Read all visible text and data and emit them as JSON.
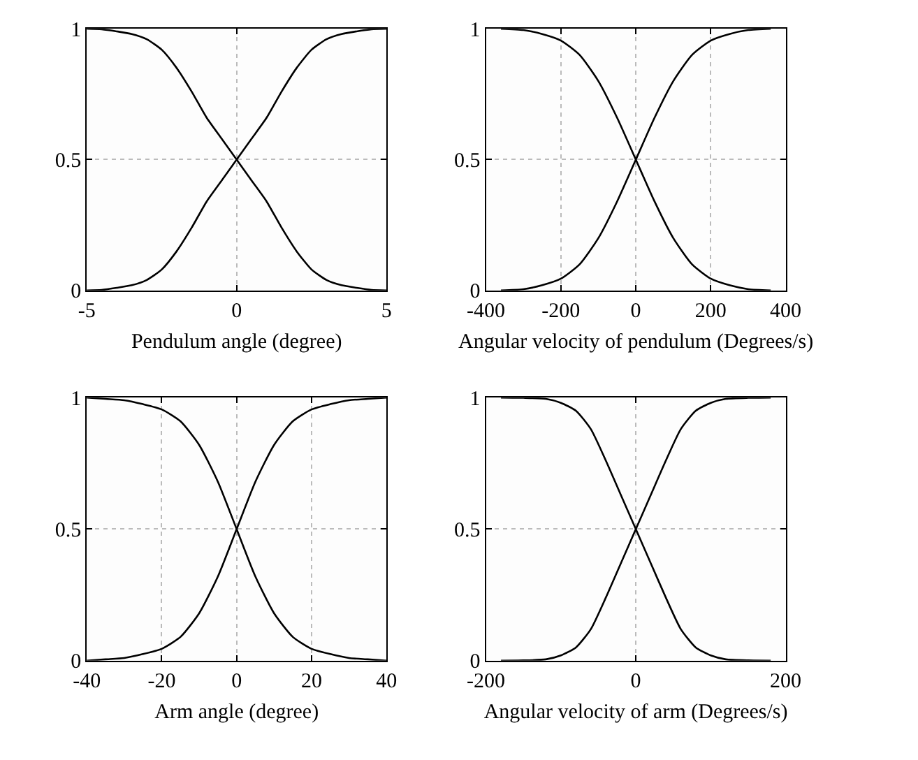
{
  "chart_data": [
    {
      "type": "line",
      "xlabel": "Pendulum angle (degree)",
      "x": [
        -5,
        -4.5,
        -4,
        -3.5,
        -3,
        -2.5,
        -2,
        -1.5,
        -1,
        -0.5,
        0,
        0.5,
        1,
        1.5,
        2,
        2.5,
        3,
        3.5,
        4,
        4.5,
        5
      ],
      "series": [
        {
          "color": "#000000",
          "values": [
            1.0,
            0.998,
            0.99,
            0.98,
            0.96,
            0.92,
            0.85,
            0.76,
            0.66,
            0.58,
            0.5,
            0.42,
            0.34,
            0.24,
            0.15,
            0.08,
            0.04,
            0.02,
            0.01,
            0.002,
            0.0
          ]
        },
        {
          "color": "#000000",
          "values": [
            0.0,
            0.002,
            0.01,
            0.02,
            0.04,
            0.08,
            0.15,
            0.24,
            0.34,
            0.42,
            0.5,
            0.58,
            0.66,
            0.76,
            0.85,
            0.92,
            0.96,
            0.98,
            0.99,
            0.998,
            1.0
          ]
        }
      ],
      "xlim": [
        -5,
        5
      ],
      "xticks": [
        -5,
        0,
        5
      ],
      "ylim": [
        0,
        1
      ],
      "yticks": [
        0,
        0.5,
        1
      ],
      "grid": true,
      "line_style": "solid",
      "marker": "none"
    },
    {
      "type": "line",
      "xlabel": "Angular velocity of pendulum (Degrees/s)",
      "x": [
        -360,
        -300,
        -250,
        -200,
        -150,
        -100,
        -50,
        0,
        50,
        100,
        150,
        200,
        250,
        300,
        360
      ],
      "series": [
        {
          "color": "#000000",
          "values": [
            1.0,
            0.995,
            0.98,
            0.955,
            0.9,
            0.8,
            0.66,
            0.5,
            0.34,
            0.2,
            0.1,
            0.045,
            0.02,
            0.005,
            0.0
          ]
        },
        {
          "color": "#000000",
          "values": [
            0.0,
            0.005,
            0.02,
            0.045,
            0.1,
            0.2,
            0.34,
            0.5,
            0.66,
            0.8,
            0.9,
            0.955,
            0.98,
            0.995,
            1.0
          ]
        }
      ],
      "xlim": [
        -400,
        400
      ],
      "xticks": [
        -400,
        -200,
        0,
        200,
        400
      ],
      "ylim": [
        0,
        1
      ],
      "yticks": [
        0,
        0.5,
        1
      ],
      "grid": true,
      "line_style": "solid",
      "marker": "none"
    },
    {
      "type": "line",
      "xlabel": "Arm angle (degree)",
      "x": [
        -40,
        -35,
        -30,
        -25,
        -20,
        -15,
        -10,
        -5,
        0,
        5,
        10,
        15,
        20,
        25,
        30,
        35,
        40
      ],
      "series": [
        {
          "color": "#000000",
          "values": [
            1.0,
            0.995,
            0.99,
            0.975,
            0.955,
            0.91,
            0.82,
            0.68,
            0.5,
            0.32,
            0.18,
            0.09,
            0.045,
            0.025,
            0.01,
            0.005,
            0.0
          ]
        },
        {
          "color": "#000000",
          "values": [
            0.0,
            0.005,
            0.01,
            0.025,
            0.045,
            0.09,
            0.18,
            0.32,
            0.5,
            0.68,
            0.82,
            0.91,
            0.955,
            0.975,
            0.99,
            0.995,
            1.0
          ]
        }
      ],
      "xlim": [
        -40,
        40
      ],
      "xticks": [
        -40,
        -20,
        0,
        20,
        40
      ],
      "ylim": [
        0,
        1
      ],
      "yticks": [
        0,
        0.5,
        1
      ],
      "grid": true,
      "line_style": "solid",
      "marker": "none"
    },
    {
      "type": "line",
      "xlabel": "Angular velocity of arm (Degrees/s)",
      "x": [
        -180,
        -150,
        -120,
        -100,
        -80,
        -60,
        -40,
        -20,
        0,
        20,
        40,
        60,
        80,
        100,
        120,
        150,
        180
      ],
      "series": [
        {
          "color": "#000000",
          "values": [
            1.0,
            0.999,
            0.995,
            0.98,
            0.95,
            0.88,
            0.76,
            0.63,
            0.5,
            0.37,
            0.24,
            0.12,
            0.05,
            0.02,
            0.005,
            0.001,
            0.0
          ]
        },
        {
          "color": "#000000",
          "values": [
            0.0,
            0.001,
            0.005,
            0.02,
            0.05,
            0.12,
            0.24,
            0.37,
            0.5,
            0.63,
            0.76,
            0.88,
            0.95,
            0.98,
            0.995,
            0.999,
            1.0
          ]
        }
      ],
      "xlim": [
        -200,
        200
      ],
      "xticks": [
        -200,
        0,
        200
      ],
      "ylim": [
        0,
        1
      ],
      "yticks": [
        0,
        0.5,
        1
      ],
      "grid": true,
      "line_style": "solid",
      "marker": "none"
    }
  ]
}
